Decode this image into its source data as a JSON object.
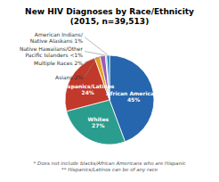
{
  "chart_data": {
    "type": "pie",
    "title": "New HIV Diagnoses by Race/Ethnicity\n(2015, n=39,513)",
    "categories": [
      "African Americans\n45%",
      "Whites\n27%",
      "Hispanics/Latinos\n24%",
      "Asians 2%",
      "Multiple Races 2%",
      "Native Hawaiians/Other\nPacific Islanders <1%",
      "American Indians/\nNative Alaskans 1%"
    ],
    "values": [
      45,
      27,
      24,
      2,
      2,
      0.5,
      1
    ],
    "colors": [
      "#2666ae",
      "#2a9d8f",
      "#c0392b",
      "#e8a020",
      "#9b59b6",
      "#5bc8d4",
      "#2874a6"
    ],
    "annotations": [
      "* Does not include blacks/African Americans who are Hispanic",
      "** Hispanics/Latinos can be of any race"
    ]
  }
}
